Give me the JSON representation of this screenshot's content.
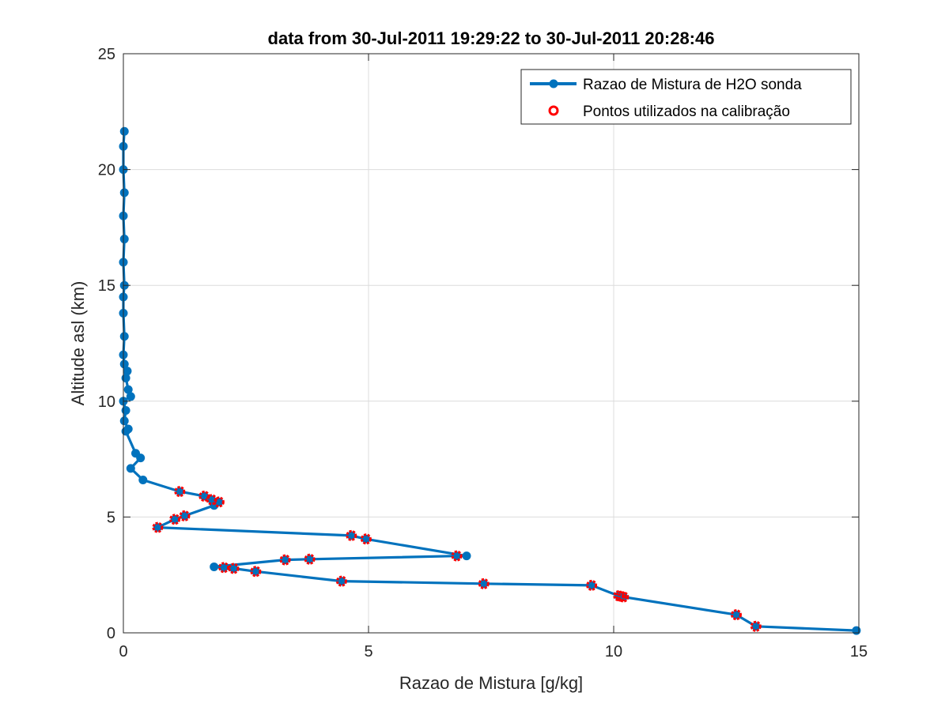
{
  "chart_data": {
    "type": "line",
    "title": "data from 30-Jul-2011 19:29:22 to 30-Jul-2011 20:28:46",
    "xlabel": "Razao de Mistura [g/kg]",
    "ylabel": "Altitude asl (km)",
    "xlim": [
      0,
      15
    ],
    "ylim": [
      0,
      25
    ],
    "xticks": [
      0,
      5,
      10,
      15
    ],
    "yticks": [
      0,
      5,
      10,
      15,
      20,
      25
    ],
    "grid": true,
    "legend_position": "top-right",
    "series": [
      {
        "name": "Razao de Mistura de H2O sonda",
        "color": "#0072BD",
        "marker": "filled-circle",
        "points": [
          [
            14.95,
            0.1
          ],
          [
            12.9,
            0.28
          ],
          [
            12.5,
            0.78
          ],
          [
            10.2,
            1.55
          ],
          [
            10.15,
            1.58
          ],
          [
            10.1,
            1.6
          ],
          [
            9.55,
            2.05
          ],
          [
            7.35,
            2.12
          ],
          [
            4.45,
            2.23
          ],
          [
            2.7,
            2.65
          ],
          [
            2.25,
            2.78
          ],
          [
            2.05,
            2.82
          ],
          [
            1.85,
            2.85
          ],
          [
            3.3,
            3.15
          ],
          [
            3.8,
            3.18
          ],
          [
            6.8,
            3.32
          ],
          [
            7.0,
            3.32
          ],
          [
            4.95,
            4.05
          ],
          [
            4.65,
            4.2
          ],
          [
            0.7,
            4.55
          ],
          [
            1.05,
            4.9
          ],
          [
            1.25,
            5.05
          ],
          [
            1.85,
            5.5
          ],
          [
            1.95,
            5.65
          ],
          [
            1.8,
            5.75
          ],
          [
            1.65,
            5.9
          ],
          [
            1.15,
            6.1
          ],
          [
            0.4,
            6.6
          ],
          [
            0.15,
            7.1
          ],
          [
            0.35,
            7.55
          ],
          [
            0.25,
            7.75
          ],
          [
            0.05,
            8.7
          ],
          [
            0.1,
            8.8
          ],
          [
            0.02,
            9.15
          ],
          [
            0.05,
            9.6
          ],
          [
            0.0,
            10.0
          ],
          [
            0.15,
            10.2
          ],
          [
            0.1,
            10.5
          ],
          [
            0.05,
            11.0
          ],
          [
            0.08,
            11.3
          ],
          [
            0.02,
            11.6
          ],
          [
            0.0,
            12.0
          ],
          [
            0.02,
            12.8
          ],
          [
            0.0,
            13.8
          ],
          [
            0.0,
            14.5
          ],
          [
            0.02,
            15.0
          ],
          [
            0.0,
            16.0
          ],
          [
            0.02,
            17.0
          ],
          [
            0.0,
            18.0
          ],
          [
            0.02,
            19.0
          ],
          [
            0.0,
            20.0
          ],
          [
            0.0,
            21.0
          ],
          [
            0.02,
            21.65
          ]
        ]
      },
      {
        "name": "Pontos utilizados na calibração",
        "color": "#FF0000",
        "marker": "open-circle",
        "points": [
          [
            12.9,
            0.28
          ],
          [
            12.5,
            0.78
          ],
          [
            10.2,
            1.55
          ],
          [
            10.15,
            1.58
          ],
          [
            10.1,
            1.6
          ],
          [
            9.55,
            2.05
          ],
          [
            7.35,
            2.12
          ],
          [
            4.45,
            2.23
          ],
          [
            2.7,
            2.65
          ],
          [
            2.25,
            2.78
          ],
          [
            2.05,
            2.82
          ],
          [
            3.3,
            3.15
          ],
          [
            3.8,
            3.18
          ],
          [
            6.8,
            3.32
          ],
          [
            4.95,
            4.05
          ],
          [
            4.65,
            4.2
          ],
          [
            0.7,
            4.55
          ],
          [
            1.05,
            4.9
          ],
          [
            1.25,
            5.05
          ],
          [
            1.95,
            5.65
          ],
          [
            1.8,
            5.75
          ],
          [
            1.65,
            5.9
          ],
          [
            1.15,
            6.1
          ]
        ]
      }
    ]
  }
}
